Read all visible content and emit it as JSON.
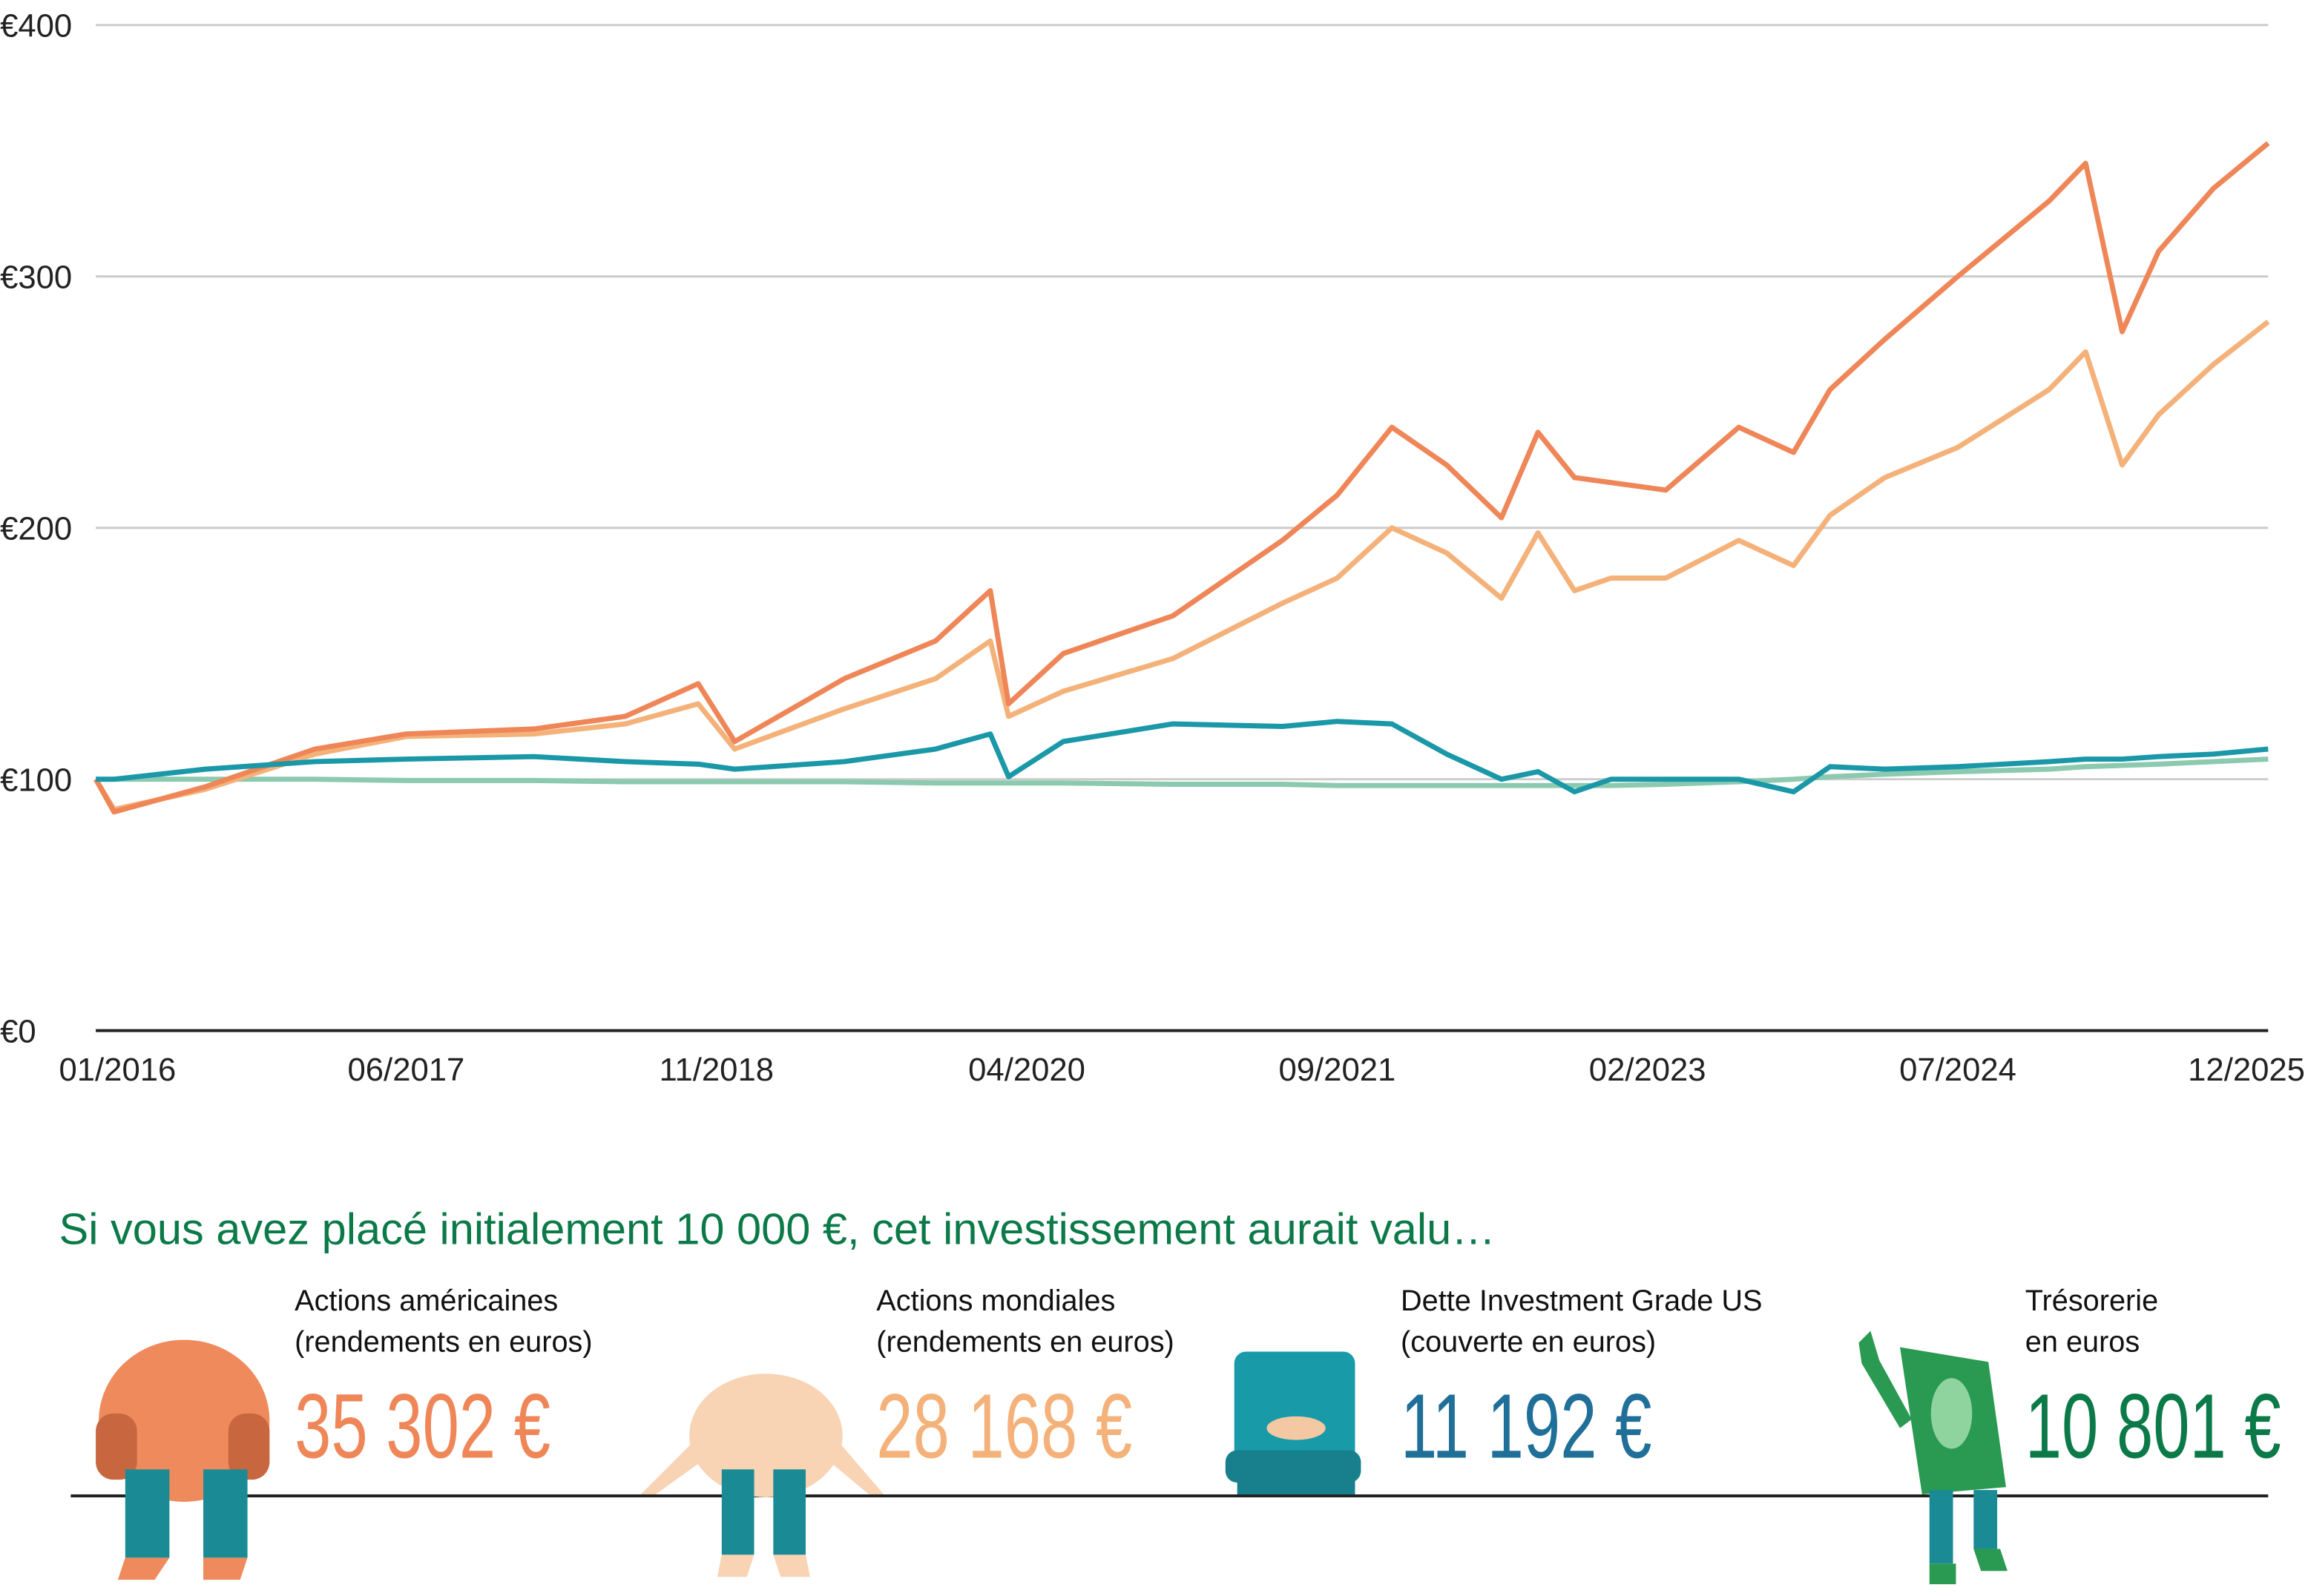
{
  "chart_data": {
    "type": "line",
    "x": [
      "01/2016",
      "02/2016",
      "07/2016",
      "01/2017",
      "06/2017",
      "01/2018",
      "06/2018",
      "10/2018",
      "12/2018",
      "06/2019",
      "11/2019",
      "02/2020",
      "03/2020",
      "06/2020",
      "12/2020",
      "06/2021",
      "09/2021",
      "12/2021",
      "03/2022",
      "06/2022",
      "08/2022",
      "10/2022",
      "12/2022",
      "03/2023",
      "07/2023",
      "10/2023",
      "12/2023",
      "03/2024",
      "07/2024",
      "12/2024",
      "02/2025",
      "04/2025",
      "06/2025",
      "09/2025",
      "12/2025"
    ],
    "xlim": [
      "01/2016",
      "12/2025"
    ],
    "xticks": [
      "01/2016",
      "06/2017",
      "11/2018",
      "04/2020",
      "09/2021",
      "02/2023",
      "07/2024",
      "12/2025"
    ],
    "ylim": [
      0,
      400
    ],
    "yticks": [
      {
        "value": 0,
        "label": "€0"
      },
      {
        "value": 100,
        "label": "€100"
      },
      {
        "value": 200,
        "label": "€200"
      },
      {
        "value": 300,
        "label": "€300"
      },
      {
        "value": 400,
        "label": "€400"
      }
    ],
    "grid": true,
    "series": [
      {
        "name": "Actions américaines",
        "note": "(rendements en euros)",
        "final_label": "35 302 €",
        "color": "#ef8658",
        "amount_color": "#ef8658",
        "values": [
          100,
          87,
          97,
          112,
          118,
          120,
          125,
          138,
          115,
          140,
          155,
          175,
          130,
          150,
          165,
          195,
          213,
          240,
          225,
          204,
          238,
          220,
          218,
          215,
          240,
          230,
          255,
          275,
          300,
          330,
          345,
          278,
          310,
          335,
          353
        ]
      },
      {
        "name": "Actions mondiales",
        "note": "(rendements en euros)",
        "final_label": "28 168 €",
        "color": "#f4b27a",
        "amount_color": "#f4b27a",
        "values": [
          100,
          88,
          96,
          110,
          117,
          118,
          122,
          130,
          112,
          128,
          140,
          155,
          125,
          135,
          148,
          170,
          180,
          200,
          190,
          172,
          198,
          175,
          180,
          180,
          195,
          185,
          205,
          220,
          232,
          255,
          270,
          225,
          245,
          265,
          282
        ]
      },
      {
        "name": "Dette Investment Grade US",
        "note": "(couverte en euros)",
        "final_label": "11 192 €",
        "color": "#1a98a8",
        "amount_color": "#1f6f98",
        "values": [
          100,
          100,
          104,
          107,
          108,
          109,
          107,
          106,
          104,
          107,
          112,
          118,
          101,
          115,
          122,
          121,
          123,
          122,
          110,
          100,
          103,
          95,
          100,
          100,
          100,
          95,
          105,
          104,
          105,
          107,
          108,
          108,
          109,
          110,
          112
        ]
      },
      {
        "name": "Trésorerie",
        "note": "en euros",
        "final_label": "10 801 €",
        "color": "#8ccab0",
        "amount_color": "#0b7a48",
        "values": [
          100,
          100,
          100,
          100,
          99.5,
          99.5,
          99,
          99,
          99,
          99,
          98.5,
          98.5,
          98.5,
          98.5,
          98,
          98,
          97.5,
          97.5,
          97.5,
          97.5,
          97.5,
          97.5,
          97.5,
          98,
          99,
          100,
          101,
          102,
          103,
          104,
          105,
          105.5,
          106,
          107,
          108
        ]
      }
    ]
  },
  "summary": {
    "heading": "Si vous avez placé initialement 10 000 €, cet investissement aurait valu…"
  }
}
